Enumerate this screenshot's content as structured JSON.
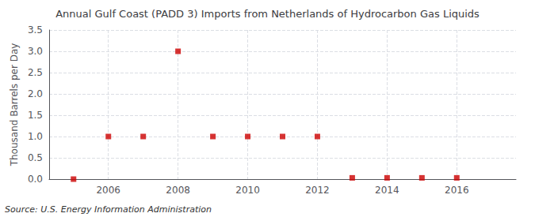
{
  "chart_data": {
    "type": "scatter",
    "title": "Annual Gulf Coast (PADD 3) Imports from Netherlands of Hydrocarbon Gas Liquids",
    "ylabel": "Thousand Barrels per Day",
    "annotation": "Source: U.S. Energy Information Administration",
    "x": [
      2005,
      2006,
      2007,
      2008,
      2009,
      2010,
      2011,
      2012,
      2013,
      2014,
      2015,
      2016
    ],
    "values": [
      0.0,
      1.0,
      1.0,
      3.0,
      1.0,
      1.0,
      1.0,
      1.0,
      0.03,
      0.03,
      0.03,
      0.03
    ],
    "color": "#cc0000",
    "marker": "square",
    "xlim": [
      2004.3,
      2017.7
    ],
    "xticks": [
      2006,
      2008,
      2010,
      2012,
      2014,
      2016
    ],
    "ylim": [
      0.0,
      3.5
    ],
    "yticks": [
      {
        "value": 0.0,
        "label": "0.0"
      },
      0.5,
      {
        "value": 1.0,
        "label": "1.0"
      },
      1.5,
      {
        "value": 2.0,
        "label": "2.0"
      },
      2.5,
      {
        "value": 3.0,
        "label": "3.0"
      },
      3.5
    ],
    "grid": true
  }
}
